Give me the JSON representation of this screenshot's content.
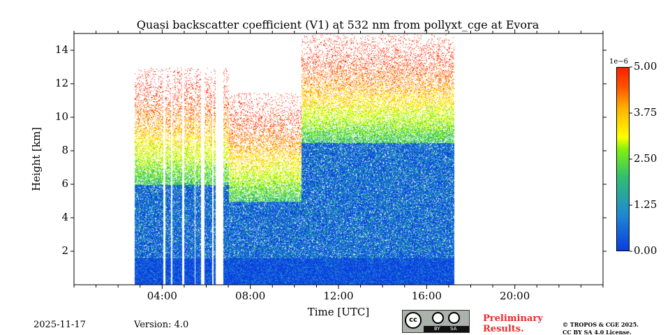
{
  "chart_data": {
    "type": "heatmap",
    "title": "Quasi backscatter coefficient (V1) at 532 nm from pollyxt_cge at Evora",
    "xlabel": "Time [UTC]",
    "ylabel": "Height [km]",
    "xlim_hours": [
      0,
      24
    ],
    "ylim_km": [
      0,
      15
    ],
    "xticks": [
      "04:00",
      "08:00",
      "12:00",
      "16:00",
      "20:00"
    ],
    "xtick_hours": [
      4,
      8,
      12,
      16,
      20
    ],
    "yticks": [
      "2",
      "4",
      "6",
      "8",
      "10",
      "12",
      "14"
    ],
    "ytick_values": [
      2,
      4,
      6,
      8,
      10,
      12,
      14
    ],
    "colorbar": {
      "label_scale": "1e−6",
      "min": 0,
      "max": 5,
      "ticks": [
        "0.00",
        "1.25",
        "2.50",
        "3.75",
        "5.00"
      ],
      "tick_values": [
        0,
        1.25,
        2.5,
        3.75,
        5
      ],
      "colormap": [
        "#0b3de0",
        "#1f8ad0",
        "#2fbf70",
        "#7ef010",
        "#ffff00",
        "#ffb000",
        "#ff5000",
        "#ff2000"
      ]
    },
    "measurement_hours": [
      2.75,
      17.25
    ],
    "data_gaps_hours": [
      [
        4.05,
        4.12
      ],
      [
        4.38,
        4.45
      ],
      [
        4.88,
        4.98
      ],
      [
        5.45,
        5.5
      ],
      [
        5.75,
        5.9
      ],
      [
        6.25,
        6.32
      ],
      [
        6.4,
        6.75
      ]
    ],
    "segments": [
      {
        "from": 2.75,
        "to": 7.0,
        "dense_top_km": 6.0,
        "signal_top_km": 13.0
      },
      {
        "from": 7.0,
        "to": 10.3,
        "dense_top_km": 5.0,
        "signal_top_km": 11.5
      },
      {
        "from": 10.3,
        "to": 17.25,
        "dense_top_km": 8.5,
        "signal_top_km": 15.0
      }
    ],
    "near_range_top_km": 1.6
  },
  "footer": {
    "date": "2025-11-17",
    "version": "Version: 4.0",
    "preliminary": [
      "Preliminary",
      "Results."
    ],
    "copyright": [
      "© TROPOS & CGE 2025.",
      "CC BY SA 4.0 License."
    ],
    "license_badge": [
      "cc",
      "BY",
      "SA"
    ]
  }
}
